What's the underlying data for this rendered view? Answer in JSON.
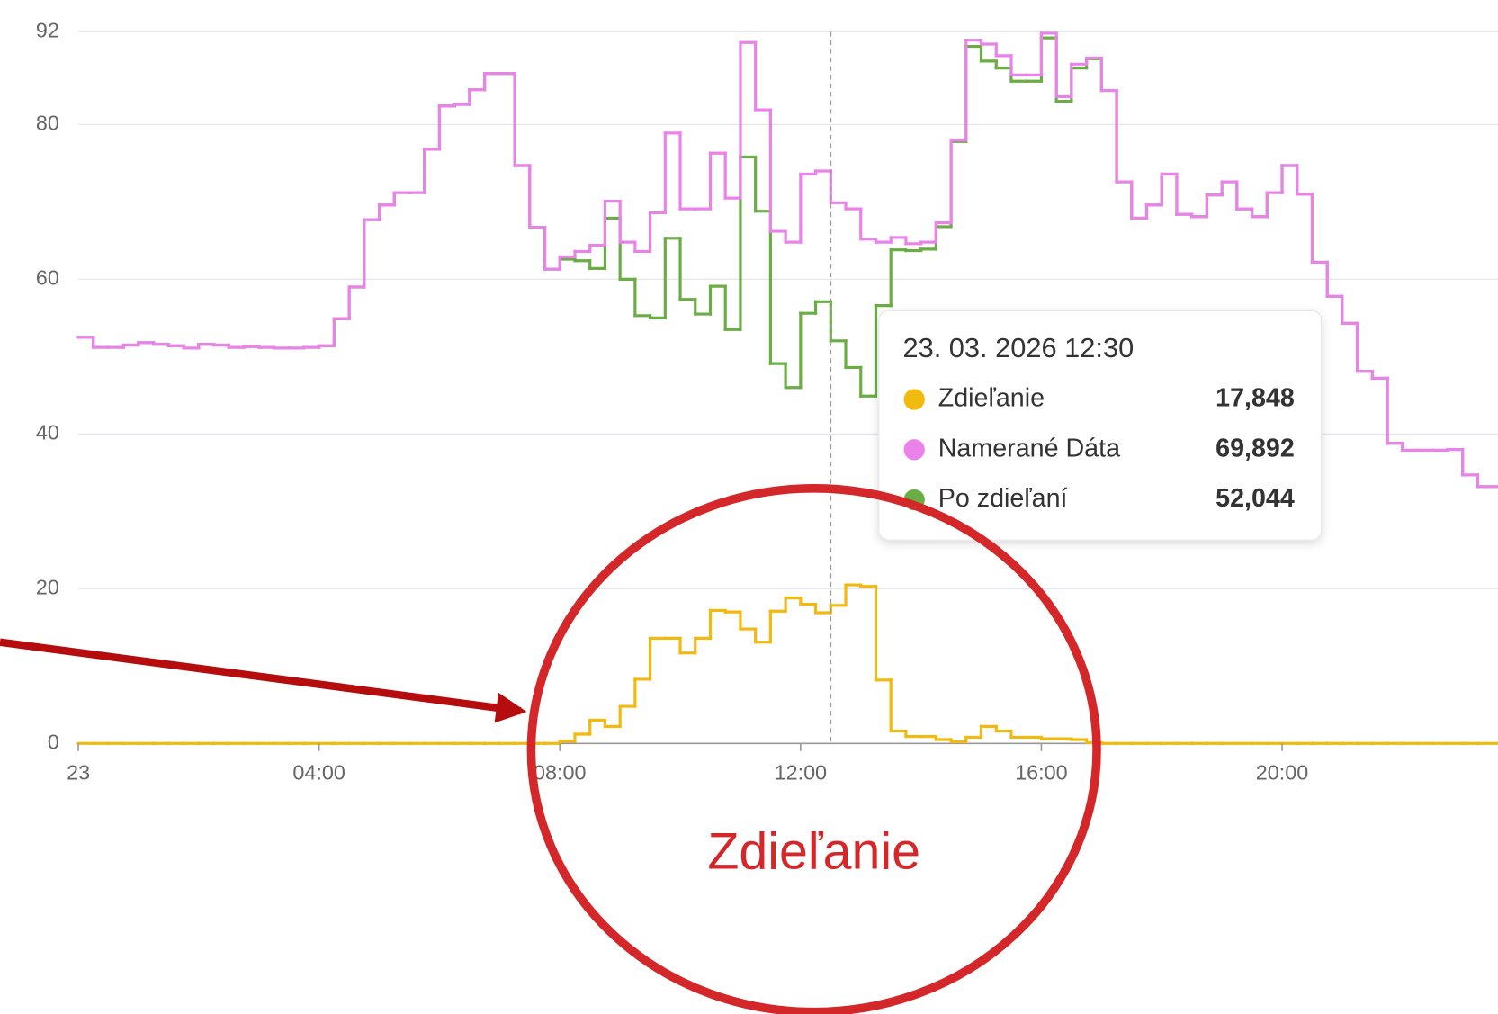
{
  "chart_data": {
    "type": "step",
    "x": [
      0,
      0.25,
      0.5,
      0.75,
      1,
      1.25,
      1.5,
      1.75,
      2,
      2.25,
      2.5,
      2.75,
      3,
      3.25,
      3.5,
      3.75,
      4,
      4.25,
      4.5,
      4.75,
      5,
      5.25,
      5.5,
      5.75,
      6,
      6.25,
      6.5,
      6.75,
      7,
      7.25,
      7.5,
      7.75,
      8,
      8.25,
      8.5,
      8.75,
      9,
      9.25,
      9.5,
      9.75,
      10,
      10.25,
      10.5,
      10.75,
      11,
      11.25,
      11.5,
      11.75,
      12,
      12.25,
      12.5,
      12.75,
      13,
      13.25,
      13.5,
      13.75,
      14,
      14.25,
      14.5,
      14.75,
      15,
      15.25,
      15.5,
      15.75,
      16,
      16.25,
      16.5,
      16.75,
      17,
      17.25,
      17.5,
      17.75,
      18,
      18.25,
      18.5,
      18.75,
      19,
      19.25,
      19.5,
      19.75,
      20,
      20.25,
      20.5,
      20.75,
      21,
      21.25,
      21.5,
      21.75,
      22,
      22.25,
      22.5,
      22.75,
      23,
      23.25
    ],
    "series": [
      {
        "name": "Zdieľanie",
        "color": "#f2b90f",
        "values": [
          0,
          0,
          0,
          0,
          0,
          0,
          0,
          0,
          0,
          0,
          0,
          0,
          0,
          0,
          0,
          0,
          0,
          0,
          0,
          0,
          0,
          0,
          0,
          0,
          0,
          0,
          0,
          0,
          0,
          0,
          0,
          0,
          0.3,
          1.2,
          3.0,
          2.2,
          4.8,
          8.3,
          13.6,
          13.6,
          11.7,
          13.6,
          17.2,
          17.0,
          14.8,
          13.1,
          17.1,
          18.8,
          18.0,
          16.9,
          17.848,
          20.5,
          20.3,
          8.2,
          1.6,
          0.9,
          0.9,
          0.5,
          0.2,
          0.8,
          2.2,
          1.6,
          0.8,
          0.8,
          0.6,
          0.6,
          0.5,
          0.1,
          0,
          0,
          0,
          0,
          0,
          0,
          0,
          0,
          0,
          0,
          0,
          0,
          0,
          0,
          0,
          0,
          0,
          0,
          0,
          0,
          0,
          0,
          0,
          0,
          0,
          0
        ]
      },
      {
        "name": "Namerané Dáta",
        "color": "#ea82ea",
        "values": [
          52.5,
          51.2,
          51.2,
          51.5,
          51.8,
          51.6,
          51.4,
          51.1,
          51.6,
          51.5,
          51.2,
          51.3,
          51.2,
          51.1,
          51.1,
          51.2,
          51.4,
          54.9,
          59.0,
          67.7,
          69.6,
          71.2,
          71.2,
          76.8,
          82.4,
          82.6,
          84.5,
          86.6,
          86.6,
          74.7,
          66.7,
          61.3,
          62.9,
          63.6,
          64.4,
          70.1,
          64.8,
          63.6,
          68.6,
          78.9,
          69.1,
          69.1,
          76.3,
          70.5,
          90.6,
          81.9,
          66.2,
          64.8,
          73.6,
          74.0,
          69.892,
          69.1,
          65.2,
          64.8,
          65.4,
          64.6,
          64.8,
          67.3,
          78.0,
          90.9,
          90.4,
          88.9,
          86.4,
          86.4,
          91.8,
          83.6,
          87.8,
          88.6,
          84.4,
          72.6,
          67.9,
          69.6,
          73.6,
          68.4,
          68.1,
          70.9,
          72.6,
          69.1,
          68.1,
          71.2,
          74.7,
          71.0,
          62.2,
          57.8,
          54.3,
          48.1,
          47.2,
          38.8,
          37.9,
          37.9,
          37.9,
          38.0,
          34.7,
          33.2
        ]
      },
      {
        "name": "Po zdieľaní",
        "color": "#6aad45",
        "values": [
          52.5,
          51.2,
          51.2,
          51.5,
          51.8,
          51.6,
          51.4,
          51.1,
          51.6,
          51.5,
          51.2,
          51.3,
          51.2,
          51.1,
          51.1,
          51.2,
          51.4,
          54.9,
          59.0,
          67.7,
          69.6,
          71.2,
          71.2,
          76.8,
          82.4,
          82.6,
          84.5,
          86.6,
          86.6,
          74.7,
          66.7,
          61.3,
          62.6,
          62.4,
          61.4,
          67.9,
          60.0,
          55.3,
          55.0,
          65.3,
          57.4,
          55.5,
          59.1,
          53.5,
          75.8,
          68.8,
          49.1,
          46.0,
          55.6,
          57.1,
          52.044,
          48.6,
          44.9,
          56.6,
          63.8,
          63.7,
          63.9,
          66.8,
          77.8,
          90.1,
          88.2,
          87.3,
          85.6,
          85.6,
          91.2,
          83.0,
          87.3,
          88.5,
          84.4,
          72.6,
          67.9,
          69.6,
          73.6,
          68.4,
          68.1,
          70.9,
          72.6,
          69.1,
          68.1,
          71.2,
          74.7,
          71.0,
          62.2,
          57.8,
          54.3,
          48.1,
          47.2,
          38.8,
          37.9,
          37.9,
          37.9,
          38.0,
          34.7,
          33.2
        ]
      }
    ],
    "xlim": [
      0,
      23.6
    ],
    "xticks": [
      {
        "value": 0,
        "label": "23"
      },
      {
        "value": 4,
        "label": "04:00"
      },
      {
        "value": 8,
        "label": "08:00"
      },
      {
        "value": 12,
        "label": "12:00"
      },
      {
        "value": 16,
        "label": "16:00"
      },
      {
        "value": 20,
        "label": "20:00"
      }
    ],
    "ylim": [
      0,
      92
    ],
    "yticks": [
      0,
      20,
      40,
      60,
      80,
      92
    ],
    "grid": true,
    "tooltip": {
      "title": "23. 03. 2026 12:30",
      "x": 12.5,
      "index": 50,
      "value_labels": [
        "17,848",
        "69,892",
        "52,044"
      ]
    },
    "annotation": "Zdieľanie"
  }
}
